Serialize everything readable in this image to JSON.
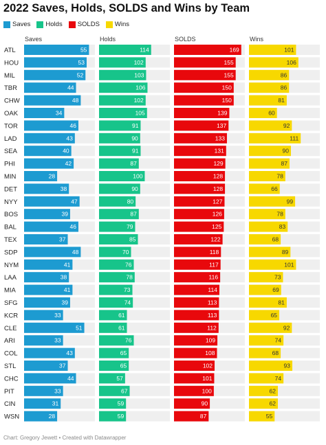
{
  "title": "2022 Saves, Holds, SOLDS and Wins by Team",
  "legend": [
    {
      "label": "Saves",
      "color": "#1d9bd1"
    },
    {
      "label": "Holds",
      "color": "#17c48a"
    },
    {
      "label": "SOLDS",
      "color": "#e8080c"
    },
    {
      "label": "Wins",
      "color": "#f7d800"
    }
  ],
  "footer": "Chart: Gregory Jewett • Created with Datawrapper",
  "chart_data": {
    "type": "bar",
    "title": "2022 Saves, Holds, SOLDS and Wins by Team",
    "orientation": "horizontal",
    "categories": [
      "ATL",
      "HOU",
      "MIL",
      "TBR",
      "CHW",
      "OAK",
      "TOR",
      "LAD",
      "SEA",
      "PHI",
      "MIN",
      "DET",
      "NYY",
      "BOS",
      "BAL",
      "TEX",
      "SDP",
      "NYM",
      "LAA",
      "MIA",
      "SFG",
      "KCR",
      "CLE",
      "ARI",
      "COL",
      "STL",
      "CHC",
      "PIT",
      "CIN",
      "WSN"
    ],
    "series": [
      {
        "name": "Saves",
        "color": "#1d9bd1",
        "max": 60,
        "values": [
          55,
          53,
          52,
          44,
          48,
          34,
          46,
          43,
          40,
          42,
          28,
          38,
          47,
          39,
          46,
          37,
          48,
          41,
          38,
          41,
          39,
          33,
          51,
          33,
          43,
          37,
          44,
          33,
          31,
          28
        ]
      },
      {
        "name": "Holds",
        "color": "#17c48a",
        "max": 155,
        "values": [
          114,
          102,
          103,
          106,
          102,
          105,
          91,
          90,
          91,
          87,
          100,
          90,
          80,
          87,
          79,
          85,
          70,
          76,
          78,
          73,
          74,
          61,
          61,
          76,
          65,
          65,
          57,
          67,
          59,
          59
        ]
      },
      {
        "name": "SOLDS",
        "color": "#e8080c",
        "max": 178,
        "values": [
          169,
          155,
          155,
          150,
          150,
          139,
          137,
          133,
          131,
          129,
          128,
          128,
          127,
          126,
          125,
          122,
          118,
          117,
          116,
          114,
          113,
          113,
          112,
          109,
          108,
          102,
          101,
          100,
          90,
          87
        ]
      },
      {
        "name": "Wins",
        "color": "#f7d800",
        "max": 152,
        "values": [
          101,
          106,
          86,
          86,
          81,
          60,
          92,
          111,
          90,
          87,
          78,
          66,
          99,
          78,
          83,
          68,
          89,
          101,
          73,
          69,
          81,
          65,
          92,
          74,
          68,
          93,
          74,
          62,
          62,
          55
        ]
      }
    ],
    "grid": false,
    "legend_position": "top-left"
  }
}
